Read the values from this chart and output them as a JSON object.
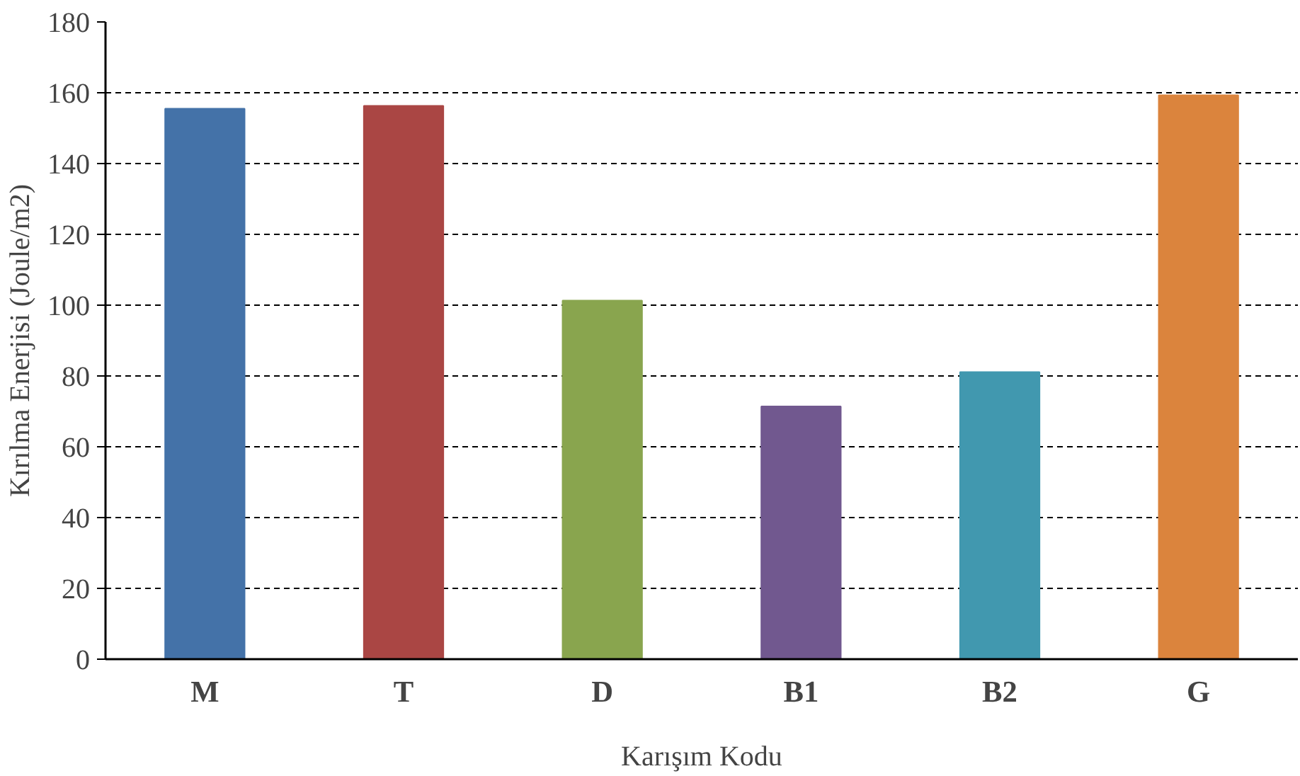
{
  "chart_data": {
    "type": "bar",
    "xlabel": "Karışım Kodu",
    "ylabel": "Kırılma Enerjisi (Joule/m2)",
    "categories": [
      "M",
      "T",
      "D",
      "B1",
      "B2",
      "G"
    ],
    "values": [
      155.5,
      156.3,
      101.3,
      71.4,
      81.1,
      159.3
    ],
    "colors": [
      "#4472a8",
      "#aa4644",
      "#89a54e",
      "#71588f",
      "#4198af",
      "#db843d"
    ],
    "ylim": [
      0,
      180
    ],
    "yticks": [
      0,
      20,
      40,
      60,
      80,
      100,
      120,
      140,
      160,
      180
    ],
    "grid": "y",
    "line_style": "dashed"
  }
}
